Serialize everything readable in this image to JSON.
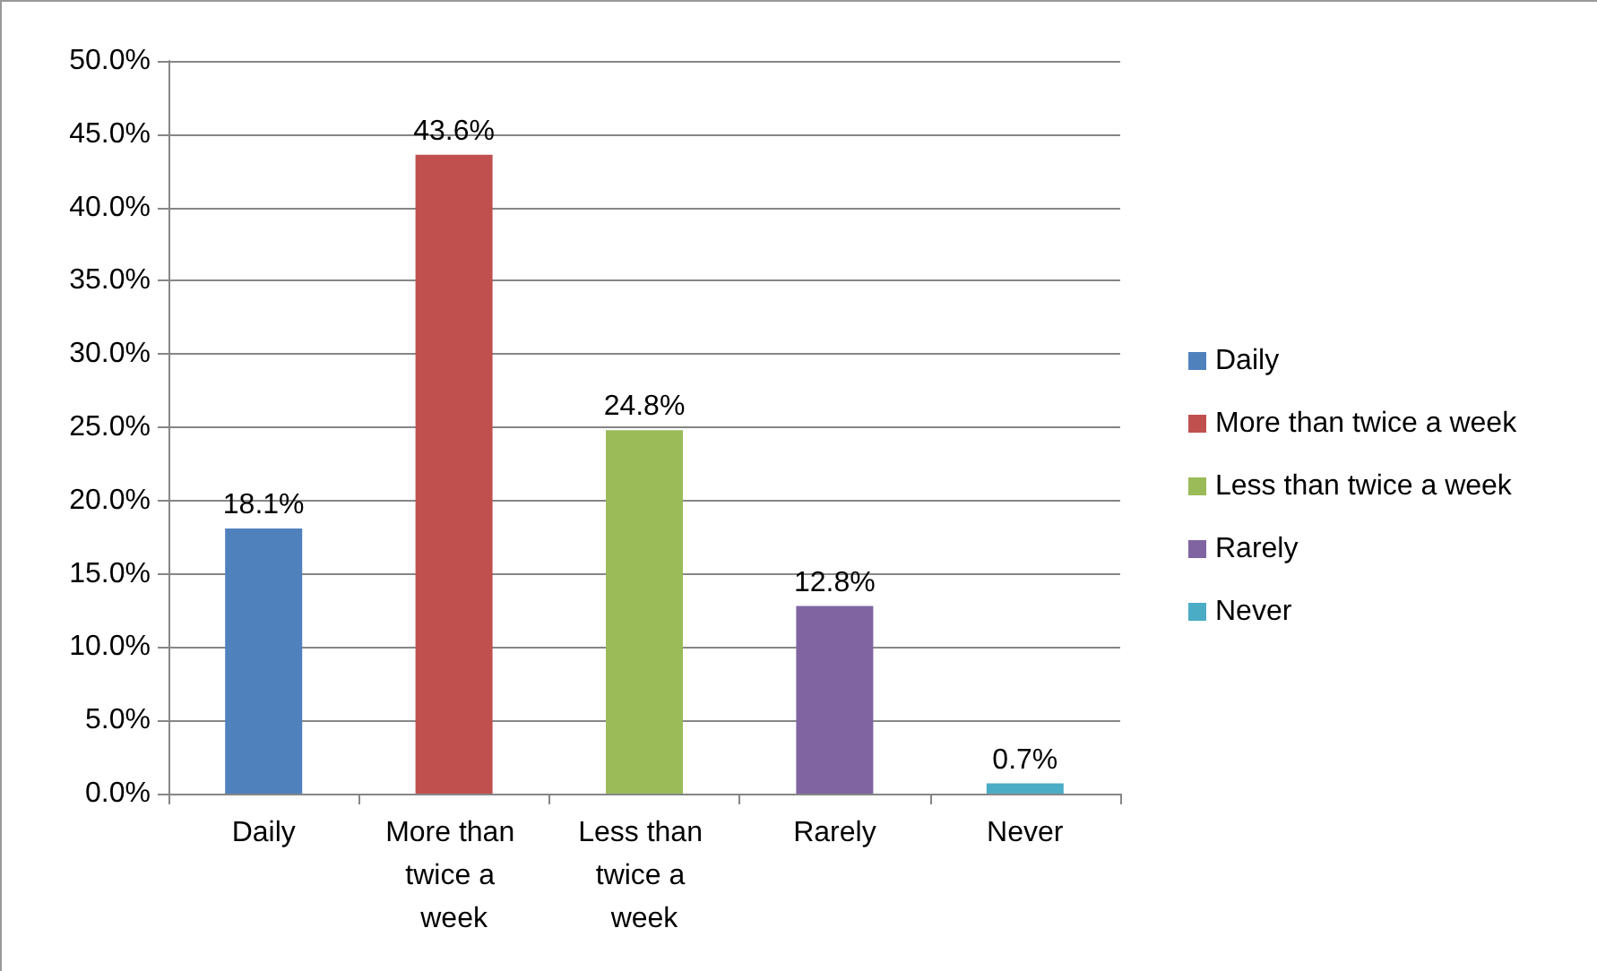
{
  "chart_data": {
    "type": "bar",
    "categories": [
      "Daily",
      "More than twice a week",
      "Less than twice a week",
      "Rarely",
      "Never"
    ],
    "series": [
      {
        "name": "Daily",
        "color": "#4f81bd",
        "values": [
          18.1,
          null,
          null,
          null,
          null
        ],
        "value_labels": [
          "18.1%",
          null,
          null,
          null,
          null
        ]
      },
      {
        "name": "More than twice a week",
        "color": "#c0504d",
        "values": [
          null,
          43.6,
          null,
          null,
          null
        ],
        "value_labels": [
          null,
          "43.6%",
          null,
          null,
          null
        ]
      },
      {
        "name": "Less than twice a week",
        "color": "#9bbb59",
        "values": [
          null,
          null,
          24.8,
          null,
          null
        ],
        "value_labels": [
          null,
          null,
          "24.8%",
          null,
          null
        ]
      },
      {
        "name": "Rarely",
        "color": "#8064a2",
        "values": [
          null,
          null,
          null,
          12.8,
          null
        ],
        "value_labels": [
          null,
          null,
          null,
          "12.8%",
          null
        ]
      },
      {
        "name": "Never",
        "color": "#4bacc6",
        "values": [
          null,
          null,
          null,
          null,
          0.7
        ],
        "value_labels": [
          null,
          null,
          null,
          null,
          "0.7%"
        ]
      }
    ],
    "ylim": [
      0,
      50
    ],
    "yticks": [
      {
        "value": 0,
        "label": "0.0%"
      },
      {
        "value": 5,
        "label": "5.0%"
      },
      {
        "value": 10,
        "label": "10.0%"
      },
      {
        "value": 15,
        "label": "15.0%"
      },
      {
        "value": 20,
        "label": "20.0%"
      },
      {
        "value": 25,
        "label": "25.0%"
      },
      {
        "value": 30,
        "label": "30.0%"
      },
      {
        "value": 35,
        "label": "35.0%"
      },
      {
        "value": 40,
        "label": "40.0%"
      },
      {
        "value": 45,
        "label": "45.0%"
      },
      {
        "value": 50,
        "label": "50.0%"
      }
    ],
    "grid": "y",
    "legend": "right"
  }
}
